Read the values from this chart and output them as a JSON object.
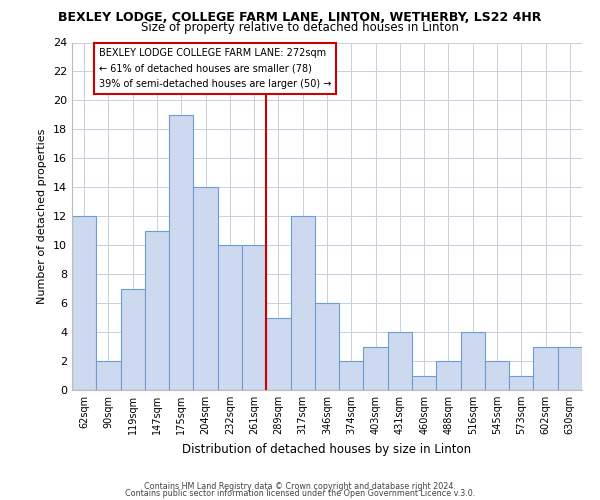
{
  "title": "BEXLEY LODGE, COLLEGE FARM LANE, LINTON, WETHERBY, LS22 4HR",
  "subtitle": "Size of property relative to detached houses in Linton",
  "xlabel": "Distribution of detached houses by size in Linton",
  "ylabel": "Number of detached properties",
  "bar_color": "#ccd9ee",
  "bar_edge_color": "#6b9fd4",
  "categories": [
    "62sqm",
    "90sqm",
    "119sqm",
    "147sqm",
    "175sqm",
    "204sqm",
    "232sqm",
    "261sqm",
    "289sqm",
    "317sqm",
    "346sqm",
    "374sqm",
    "403sqm",
    "431sqm",
    "460sqm",
    "488sqm",
    "516sqm",
    "545sqm",
    "573sqm",
    "602sqm",
    "630sqm"
  ],
  "values": [
    12,
    2,
    7,
    11,
    19,
    14,
    10,
    10,
    5,
    12,
    6,
    2,
    3,
    4,
    1,
    2,
    4,
    2,
    1,
    3,
    3
  ],
  "ylim": [
    0,
    24
  ],
  "yticks": [
    0,
    2,
    4,
    6,
    8,
    10,
    12,
    14,
    16,
    18,
    20,
    22,
    24
  ],
  "vline_x": 7.5,
  "vline_color": "#cc0000",
  "annotation_title": "BEXLEY LODGE COLLEGE FARM LANE: 272sqm",
  "annotation_line1": "← 61% of detached houses are smaller (78)",
  "annotation_line2": "39% of semi-detached houses are larger (50) →",
  "footer1": "Contains HM Land Registry data © Crown copyright and database right 2024.",
  "footer2": "Contains public sector information licensed under the Open Government Licence v.3.0.",
  "background_color": "#ffffff",
  "grid_color": "#c8d0de"
}
